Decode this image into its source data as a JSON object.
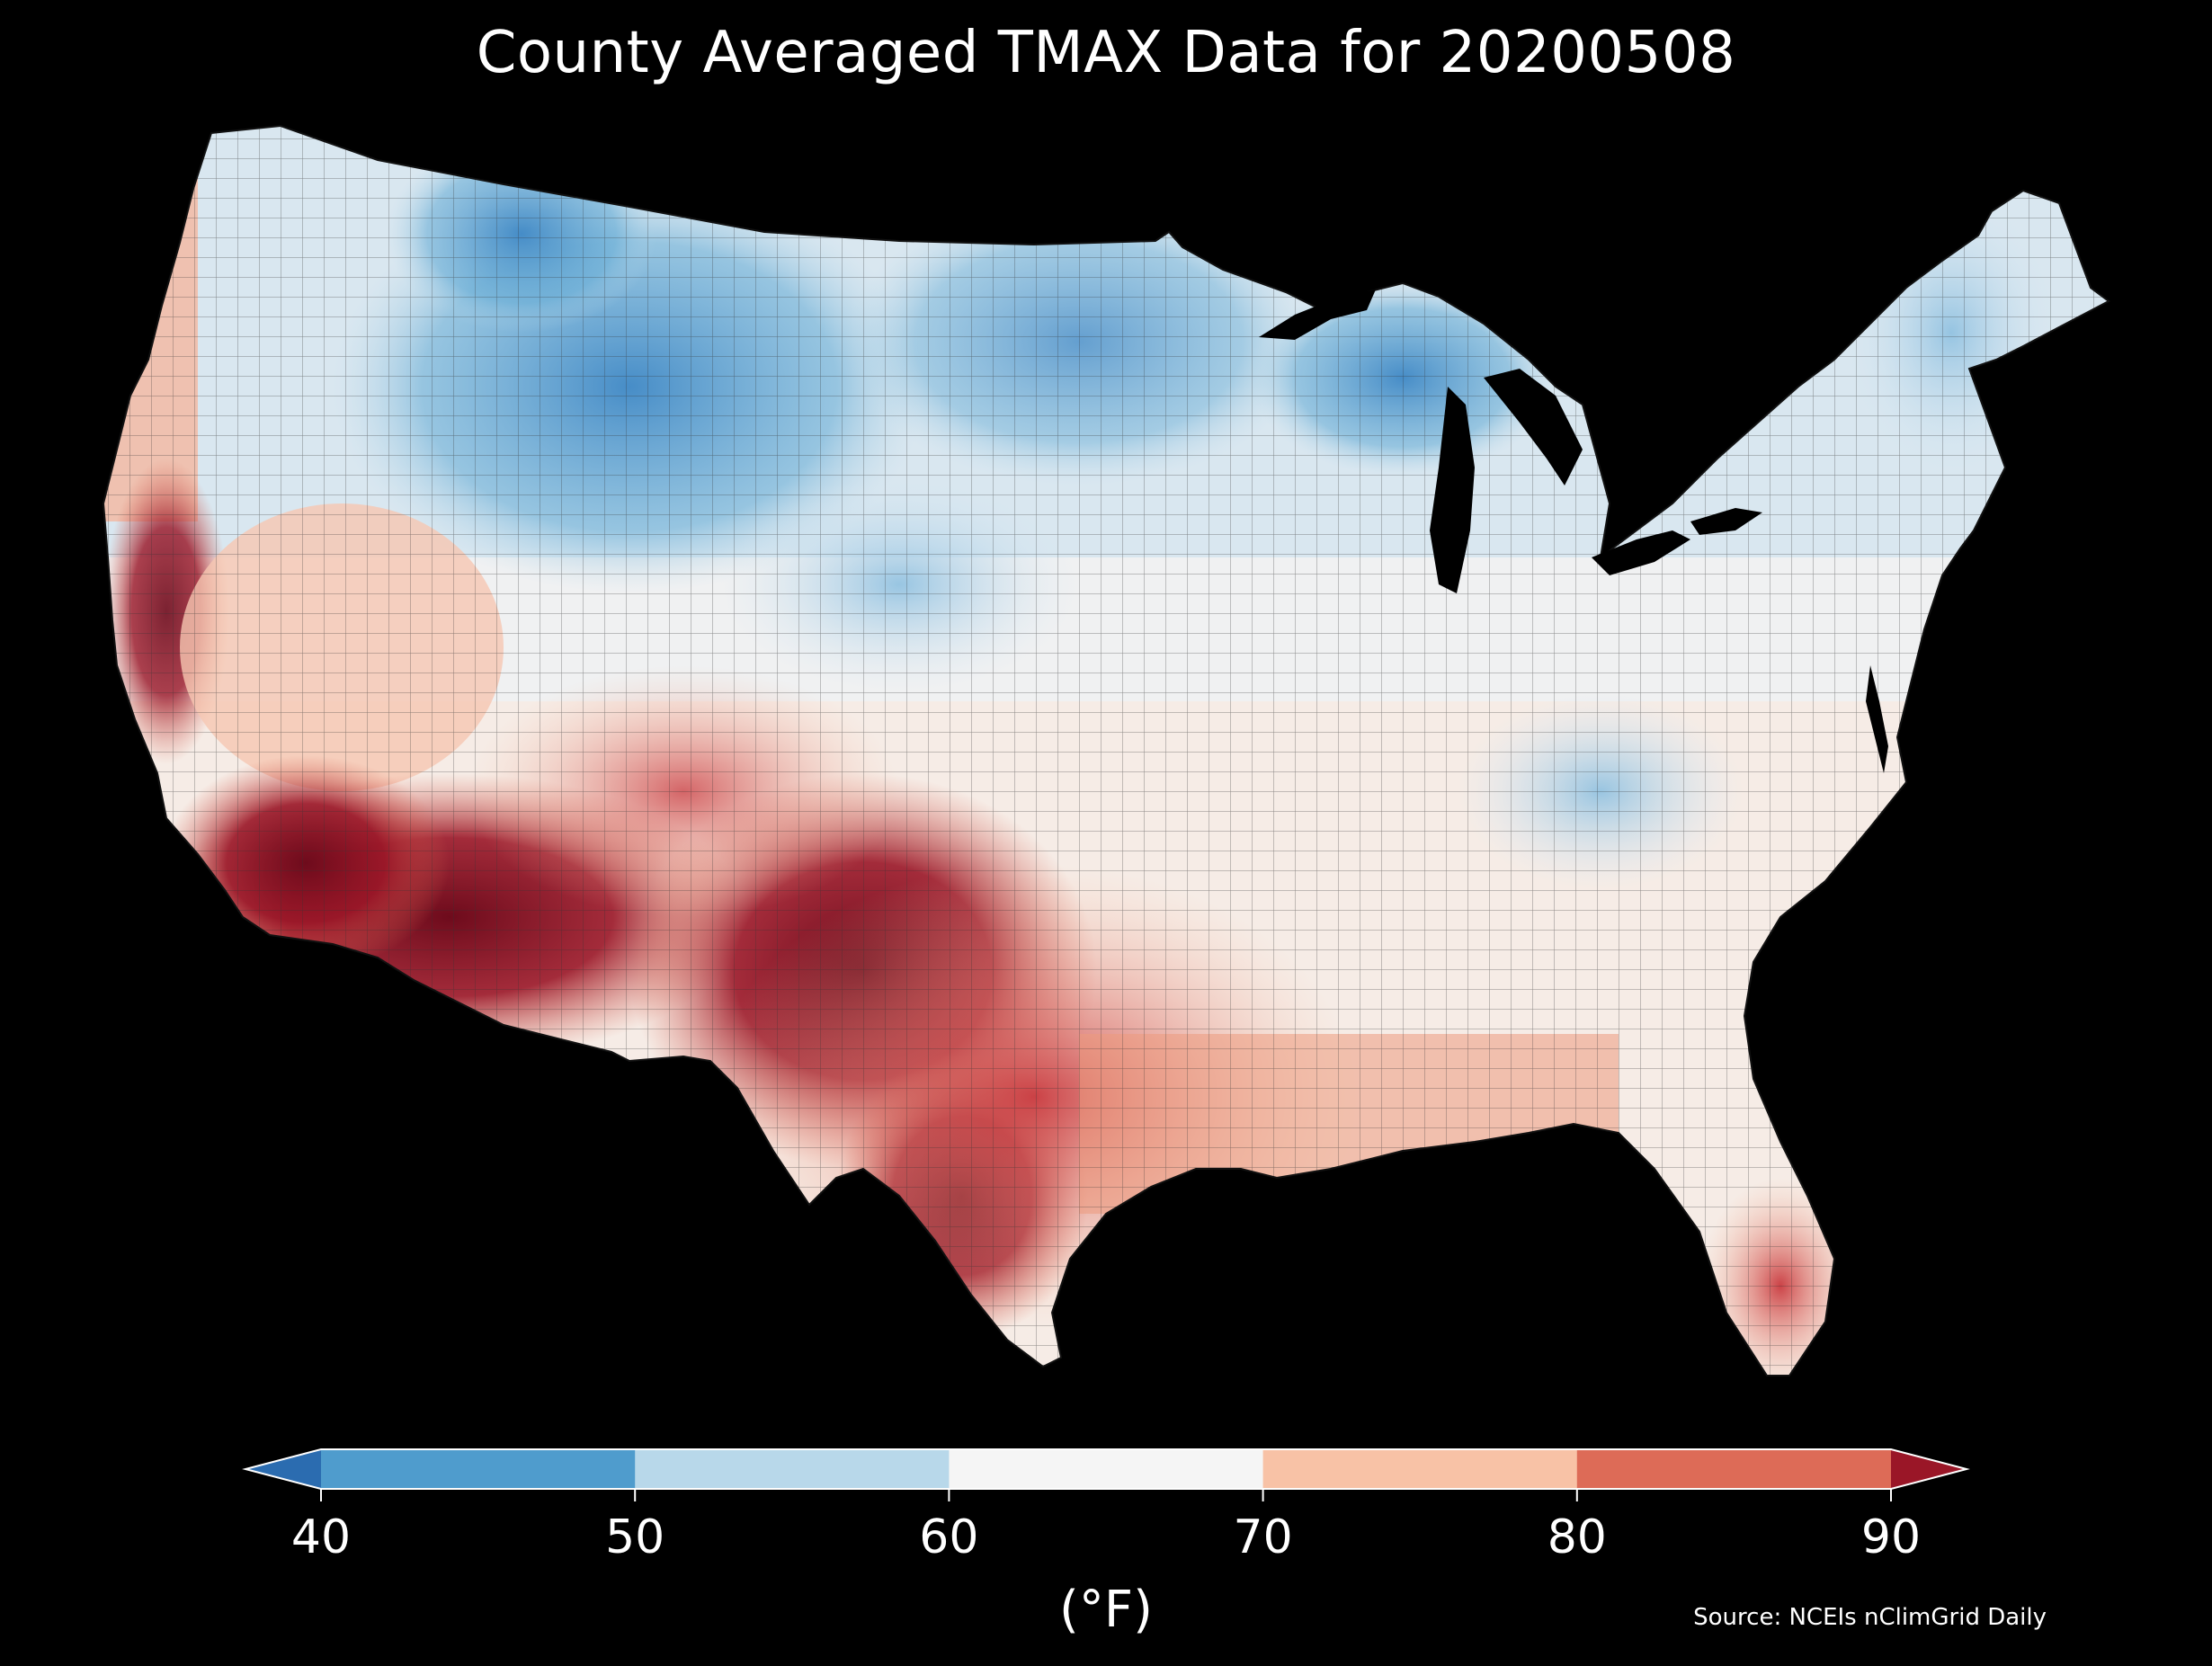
{
  "title": "County Averaged TMAX Data for 20200508",
  "colorbar": {
    "label": "(°F)",
    "ticks": [
      "40",
      "50",
      "60",
      "70",
      "80",
      "90"
    ],
    "colors": [
      "#2b6cb0",
      "#4f9ccd",
      "#b8d8ea",
      "#f5f5f5",
      "#f8c2a6",
      "#dd6b57",
      "#9a1627"
    ],
    "extend": "both"
  },
  "source": "Source: NCEIs nClimGrid Daily",
  "map": {
    "region": "conterminous-united-states",
    "palette": {
      "v_cold": "#2b6cb0",
      "cold": "#4f9ccd",
      "cool": "#b8d8ea",
      "mild": "#f5f5f5",
      "warm": "#f8c2a6",
      "hot": "#dd6b57",
      "v_hot": "#9a1627",
      "extreme": "#6e0b1c",
      "border": "#222222"
    }
  }
}
